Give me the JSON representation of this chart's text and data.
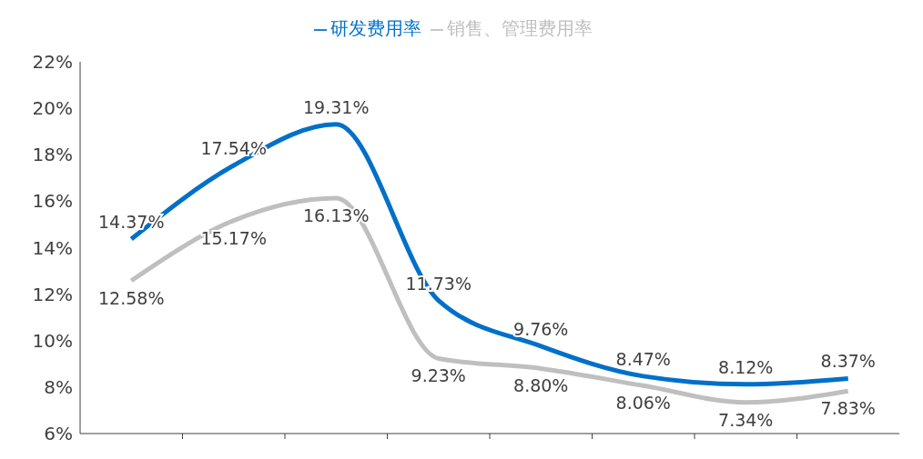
{
  "chart_data": {
    "type": "line",
    "categories": [
      null,
      null,
      null,
      null,
      null,
      null,
      null,
      null
    ],
    "series": [
      {
        "name": "研发费用率",
        "color": "#0070c8",
        "values": [
          14.37,
          17.54,
          19.31,
          11.73,
          9.76,
          8.47,
          8.12,
          8.37
        ],
        "value_labels": [
          "14.37%",
          "17.54%",
          "19.31%",
          "11.73%",
          "9.76%",
          "8.47%",
          "8.12%",
          "8.37%"
        ]
      },
      {
        "name": "销售、管理费用率",
        "color": "#bfbfbf",
        "values": [
          12.58,
          15.17,
          16.13,
          9.23,
          8.8,
          8.06,
          7.34,
          7.83
        ],
        "value_labels": [
          "12.58%",
          "15.17%",
          "16.13%",
          "9.23%",
          "8.80%",
          "8.06%",
          "7.34%",
          "7.83%"
        ]
      }
    ],
    "ylim": [
      6,
      22
    ],
    "yticks": [
      {
        "value": 6,
        "label": "6%"
      },
      {
        "value": 8,
        "label": "8%"
      },
      {
        "value": 10,
        "label": "10%"
      },
      {
        "value": 12,
        "label": "12%"
      },
      {
        "value": 14,
        "label": "14%"
      },
      {
        "value": 16,
        "label": "16%"
      },
      {
        "value": 18,
        "label": "18%"
      },
      {
        "value": 20,
        "label": "20%"
      },
      {
        "value": 22,
        "label": "22%"
      }
    ],
    "grid": false,
    "legend": "top",
    "marker": "none",
    "line_style": "solid",
    "tick_labels": "y"
  }
}
